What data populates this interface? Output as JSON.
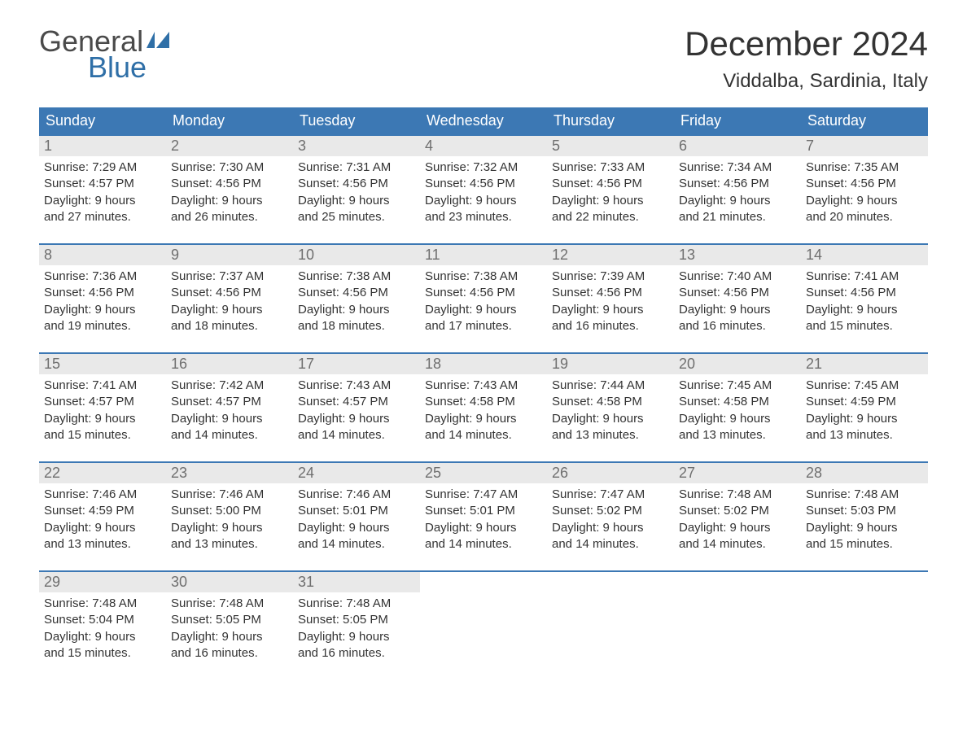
{
  "brand": {
    "part1": "General",
    "part2": "Blue",
    "text_color": "#4a4a4a",
    "accent_color": "#2f6fa7"
  },
  "title": "December 2024",
  "location": "Viddalba, Sardinia, Italy",
  "colors": {
    "header_bg": "#3c78b4",
    "header_text": "#ffffff",
    "daynum_bg": "#e9e9e9",
    "daynum_text": "#6f6f6f",
    "body_text": "#333333",
    "week_border": "#3c78b4",
    "page_bg": "#ffffff"
  },
  "fonts": {
    "title_size": 42,
    "location_size": 24,
    "weekday_size": 18,
    "daynum_size": 18,
    "body_size": 15
  },
  "weekdays": [
    "Sunday",
    "Monday",
    "Tuesday",
    "Wednesday",
    "Thursday",
    "Friday",
    "Saturday"
  ],
  "labels": {
    "sunrise": "Sunrise: ",
    "sunset": "Sunset: ",
    "daylight": "Daylight: "
  },
  "days": [
    {
      "n": 1,
      "sunrise": "7:29 AM",
      "sunset": "4:57 PM",
      "dl1": "9 hours",
      "dl2": "and 27 minutes."
    },
    {
      "n": 2,
      "sunrise": "7:30 AM",
      "sunset": "4:56 PM",
      "dl1": "9 hours",
      "dl2": "and 26 minutes."
    },
    {
      "n": 3,
      "sunrise": "7:31 AM",
      "sunset": "4:56 PM",
      "dl1": "9 hours",
      "dl2": "and 25 minutes."
    },
    {
      "n": 4,
      "sunrise": "7:32 AM",
      "sunset": "4:56 PM",
      "dl1": "9 hours",
      "dl2": "and 23 minutes."
    },
    {
      "n": 5,
      "sunrise": "7:33 AM",
      "sunset": "4:56 PM",
      "dl1": "9 hours",
      "dl2": "and 22 minutes."
    },
    {
      "n": 6,
      "sunrise": "7:34 AM",
      "sunset": "4:56 PM",
      "dl1": "9 hours",
      "dl2": "and 21 minutes."
    },
    {
      "n": 7,
      "sunrise": "7:35 AM",
      "sunset": "4:56 PM",
      "dl1": "9 hours",
      "dl2": "and 20 minutes."
    },
    {
      "n": 8,
      "sunrise": "7:36 AM",
      "sunset": "4:56 PM",
      "dl1": "9 hours",
      "dl2": "and 19 minutes."
    },
    {
      "n": 9,
      "sunrise": "7:37 AM",
      "sunset": "4:56 PM",
      "dl1": "9 hours",
      "dl2": "and 18 minutes."
    },
    {
      "n": 10,
      "sunrise": "7:38 AM",
      "sunset": "4:56 PM",
      "dl1": "9 hours",
      "dl2": "and 18 minutes."
    },
    {
      "n": 11,
      "sunrise": "7:38 AM",
      "sunset": "4:56 PM",
      "dl1": "9 hours",
      "dl2": "and 17 minutes."
    },
    {
      "n": 12,
      "sunrise": "7:39 AM",
      "sunset": "4:56 PM",
      "dl1": "9 hours",
      "dl2": "and 16 minutes."
    },
    {
      "n": 13,
      "sunrise": "7:40 AM",
      "sunset": "4:56 PM",
      "dl1": "9 hours",
      "dl2": "and 16 minutes."
    },
    {
      "n": 14,
      "sunrise": "7:41 AM",
      "sunset": "4:56 PM",
      "dl1": "9 hours",
      "dl2": "and 15 minutes."
    },
    {
      "n": 15,
      "sunrise": "7:41 AM",
      "sunset": "4:57 PM",
      "dl1": "9 hours",
      "dl2": "and 15 minutes."
    },
    {
      "n": 16,
      "sunrise": "7:42 AM",
      "sunset": "4:57 PM",
      "dl1": "9 hours",
      "dl2": "and 14 minutes."
    },
    {
      "n": 17,
      "sunrise": "7:43 AM",
      "sunset": "4:57 PM",
      "dl1": "9 hours",
      "dl2": "and 14 minutes."
    },
    {
      "n": 18,
      "sunrise": "7:43 AM",
      "sunset": "4:58 PM",
      "dl1": "9 hours",
      "dl2": "and 14 minutes."
    },
    {
      "n": 19,
      "sunrise": "7:44 AM",
      "sunset": "4:58 PM",
      "dl1": "9 hours",
      "dl2": "and 13 minutes."
    },
    {
      "n": 20,
      "sunrise": "7:45 AM",
      "sunset": "4:58 PM",
      "dl1": "9 hours",
      "dl2": "and 13 minutes."
    },
    {
      "n": 21,
      "sunrise": "7:45 AM",
      "sunset": "4:59 PM",
      "dl1": "9 hours",
      "dl2": "and 13 minutes."
    },
    {
      "n": 22,
      "sunrise": "7:46 AM",
      "sunset": "4:59 PM",
      "dl1": "9 hours",
      "dl2": "and 13 minutes."
    },
    {
      "n": 23,
      "sunrise": "7:46 AM",
      "sunset": "5:00 PM",
      "dl1": "9 hours",
      "dl2": "and 13 minutes."
    },
    {
      "n": 24,
      "sunrise": "7:46 AM",
      "sunset": "5:01 PM",
      "dl1": "9 hours",
      "dl2": "and 14 minutes."
    },
    {
      "n": 25,
      "sunrise": "7:47 AM",
      "sunset": "5:01 PM",
      "dl1": "9 hours",
      "dl2": "and 14 minutes."
    },
    {
      "n": 26,
      "sunrise": "7:47 AM",
      "sunset": "5:02 PM",
      "dl1": "9 hours",
      "dl2": "and 14 minutes."
    },
    {
      "n": 27,
      "sunrise": "7:48 AM",
      "sunset": "5:02 PM",
      "dl1": "9 hours",
      "dl2": "and 14 minutes."
    },
    {
      "n": 28,
      "sunrise": "7:48 AM",
      "sunset": "5:03 PM",
      "dl1": "9 hours",
      "dl2": "and 15 minutes."
    },
    {
      "n": 29,
      "sunrise": "7:48 AM",
      "sunset": "5:04 PM",
      "dl1": "9 hours",
      "dl2": "and 15 minutes."
    },
    {
      "n": 30,
      "sunrise": "7:48 AM",
      "sunset": "5:05 PM",
      "dl1": "9 hours",
      "dl2": "and 16 minutes."
    },
    {
      "n": 31,
      "sunrise": "7:48 AM",
      "sunset": "5:05 PM",
      "dl1": "9 hours",
      "dl2": "and 16 minutes."
    }
  ],
  "grid": {
    "start_weekday_index": 0,
    "rows": 5,
    "cols": 7
  }
}
